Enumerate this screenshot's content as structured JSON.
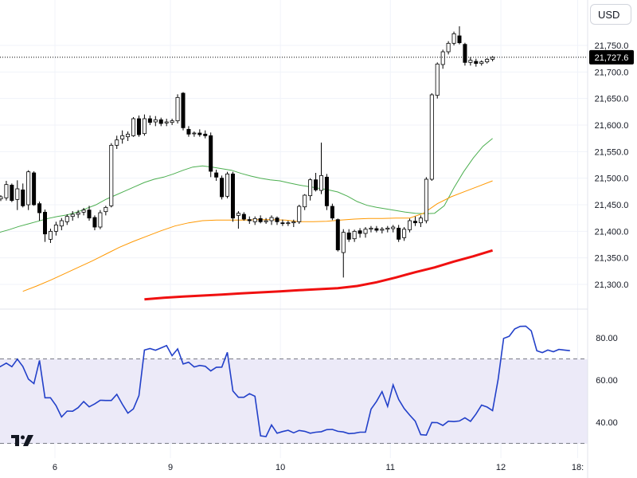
{
  "currency_selector": {
    "label": "USD"
  },
  "logo": {
    "name": "tradingview-logo",
    "text": "TV"
  },
  "chart_data": [
    {
      "type": "candlestick",
      "title": "",
      "ylim": [
        21270,
        21790
      ],
      "y_ticks": [
        "21,300.0",
        "21,350.0",
        "21,400.0",
        "21,450.0",
        "21,500.0",
        "21,550.0",
        "21,600.0",
        "21,650.0",
        "21,700.0",
        "21,750.0"
      ],
      "y_tick_values": [
        21300,
        21350,
        21400,
        21450,
        21500,
        21550,
        21600,
        21650,
        21700,
        21750
      ],
      "x_ticks": [
        "6",
        "9",
        "10",
        "11",
        "12",
        "18:"
      ],
      "x_tick_index": [
        11.8,
        32.7,
        52.6,
        72.5,
        92.5,
        106.4
      ],
      "last_price": {
        "value": 21727.6,
        "label": "21,727.6"
      },
      "grid": true,
      "candles": [
        [
          21452,
          21459,
          21447,
          21456
        ],
        [
          21456,
          21464,
          21452,
          21460
        ],
        [
          21461,
          21468,
          21457,
          21465
        ],
        [
          21463,
          21495,
          21458,
          21488
        ],
        [
          21487,
          21490,
          21455,
          21458
        ],
        [
          21460,
          21496,
          21440,
          21480
        ],
        [
          21478,
          21490,
          21445,
          21448
        ],
        [
          21450,
          21515,
          21440,
          21512
        ],
        [
          21510,
          21513,
          21448,
          21450
        ],
        [
          21452,
          21456,
          21420,
          21435
        ],
        [
          21436,
          21441,
          21380,
          21395
        ],
        [
          21385,
          21405,
          21378,
          21400
        ],
        [
          21400,
          21418,
          21392,
          21412
        ],
        [
          21410,
          21425,
          21402,
          21420
        ],
        [
          21418,
          21432,
          21412,
          21428
        ],
        [
          21428,
          21438,
          21420,
          21432
        ],
        [
          21432,
          21440,
          21425,
          21435
        ],
        [
          21436,
          21444,
          21430,
          21440
        ],
        [
          21440,
          21448,
          21420,
          21425
        ],
        [
          21426,
          21430,
          21402,
          21408
        ],
        [
          21408,
          21440,
          21404,
          21435
        ],
        [
          21437,
          21448,
          21430,
          21445
        ],
        [
          21448,
          21566,
          21445,
          21562
        ],
        [
          21562,
          21580,
          21555,
          21572
        ],
        [
          21574,
          21590,
          21565,
          21580
        ],
        [
          21578,
          21588,
          21570,
          21583
        ],
        [
          21580,
          21615,
          21578,
          21612
        ],
        [
          21612,
          21618,
          21578,
          21582
        ],
        [
          21584,
          21620,
          21580,
          21612
        ],
        [
          21612,
          21618,
          21600,
          21605
        ],
        [
          21606,
          21617,
          21598,
          21610
        ],
        [
          21610,
          21614,
          21598,
          21603
        ],
        [
          21604,
          21612,
          21598,
          21606
        ],
        [
          21605,
          21612,
          21600,
          21608
        ],
        [
          21608,
          21658,
          21603,
          21652
        ],
        [
          21660,
          21662,
          21590,
          21595
        ],
        [
          21592,
          21598,
          21578,
          21583
        ],
        [
          21584,
          21588,
          21578,
          21585
        ],
        [
          21585,
          21592,
          21578,
          21582
        ],
        [
          21583,
          21590,
          21575,
          21580
        ],
        [
          21580,
          21586,
          21502,
          21513
        ],
        [
          21510,
          21516,
          21495,
          21502
        ],
        [
          21500,
          21505,
          21460,
          21465
        ],
        [
          21466,
          21512,
          21462,
          21508
        ],
        [
          21508,
          21512,
          21418,
          21425
        ],
        [
          21430,
          21438,
          21405,
          21434
        ],
        [
          21432,
          21436,
          21420,
          21423
        ],
        [
          21422,
          21428,
          21414,
          21420
        ],
        [
          21418,
          21428,
          21412,
          21424
        ],
        [
          21424,
          21430,
          21415,
          21418
        ],
        [
          21418,
          21425,
          21414,
          21420
        ],
        [
          21420,
          21430,
          21412,
          21426
        ],
        [
          21425,
          21428,
          21412,
          21418
        ],
        [
          21416,
          21422,
          21410,
          21415
        ],
        [
          21415,
          21420,
          21410,
          21416
        ],
        [
          21416,
          21422,
          21408,
          21418
        ],
        [
          21418,
          21450,
          21414,
          21447
        ],
        [
          21446,
          21470,
          21440,
          21468
        ],
        [
          21467,
          21500,
          21458,
          21497
        ],
        [
          21497,
          21510,
          21475,
          21478
        ],
        [
          21477,
          21567,
          21470,
          21505
        ],
        [
          21502,
          21508,
          21440,
          21448
        ],
        [
          21447,
          21452,
          21421,
          21425
        ],
        [
          21422,
          21424,
          21362,
          21365
        ],
        [
          21360,
          21404,
          21313,
          21398
        ],
        [
          21397,
          21404,
          21380,
          21385
        ],
        [
          21386,
          21403,
          21380,
          21400
        ],
        [
          21401,
          21406,
          21388,
          21396
        ],
        [
          21396,
          21408,
          21388,
          21404
        ],
        [
          21404,
          21410,
          21398,
          21406
        ],
        [
          21405,
          21410,
          21398,
          21402
        ],
        [
          21402,
          21408,
          21396,
          21404
        ],
        [
          21404,
          21410,
          21398,
          21406
        ],
        [
          21405,
          21412,
          21398,
          21408
        ],
        [
          21406,
          21412,
          21380,
          21385
        ],
        [
          21388,
          21408,
          21382,
          21404
        ],
        [
          21403,
          21424,
          21398,
          21420
        ],
        [
          21419,
          21428,
          21410,
          21416
        ],
        [
          21416,
          21430,
          21408,
          21425
        ],
        [
          21420,
          21502,
          21415,
          21498
        ],
        [
          21498,
          21660,
          21495,
          21657
        ],
        [
          21656,
          21718,
          21650,
          21715
        ],
        [
          21714,
          21742,
          21706,
          21738
        ],
        [
          21738,
          21758,
          21733,
          21754
        ],
        [
          21754,
          21776,
          21750,
          21772
        ],
        [
          21768,
          21786,
          21752,
          21755
        ],
        [
          21752,
          21755,
          21712,
          21718
        ],
        [
          21718,
          21728,
          21712,
          21722
        ],
        [
          21720,
          21725,
          21710,
          21716
        ],
        [
          21716,
          21722,
          21712,
          21719
        ],
        [
          21719,
          21726,
          21716,
          21724
        ],
        [
          21724,
          21730,
          21720,
          21727.6
        ]
      ],
      "series": [
        {
          "values": [
            21328,
            21343,
            21356,
            21368,
            21377,
            21383,
            21387,
            21390,
            21393,
            21398,
            21403,
            21409,
            21414,
            21419,
            21424,
            21428,
            21431,
            21436,
            21443,
            21450,
            21460,
            21468,
            21476,
            21484,
            21492,
            21498,
            21502,
            21508,
            21515,
            21521,
            21523,
            21521,
            21518,
            21515,
            21509,
            21504,
            21500,
            21497,
            21495,
            21491,
            21487,
            21484,
            21481,
            21478,
            21474,
            21466,
            21456,
            21449,
            21445,
            21442,
            21439,
            21436,
            21434,
            21433,
            21434,
            21448,
            21482,
            21512,
            21538,
            21560,
            21575
          ]
        },
        {
          "values": [
            21287,
            21297,
            21308,
            21320,
            21332,
            21344,
            21357,
            21370,
            21381,
            21391,
            21401,
            21410,
            21416,
            21420,
            21421,
            21421,
            21421,
            21422,
            21422,
            21421,
            21418,
            21418,
            21419,
            21421,
            21423,
            21424,
            21424,
            21425,
            21425,
            21434,
            21452,
            21465,
            21475,
            21485,
            21495
          ]
        },
        {
          "values": [
            21272,
            21275,
            21277,
            21279,
            21281,
            21283,
            21285,
            21287,
            21289,
            21291,
            21293,
            21297,
            21304,
            21313,
            21323,
            21332,
            21343,
            21353,
            21364
          ]
        }
      ]
    },
    {
      "type": "line",
      "title": "",
      "ylim": [
        27,
        90
      ],
      "y_ticks": [
        "40.00",
        "60.00",
        "80.00"
      ],
      "y_tick_values": [
        40,
        60,
        80
      ],
      "reference_lines": [
        70,
        30
      ],
      "band": [
        30,
        70
      ],
      "series": [
        {
          "values": [
            66.7,
            65.4,
            66.5,
            68.0,
            66.3,
            69.9,
            66.4,
            60.4,
            58.3,
            69.3,
            51.6,
            51.6,
            47.9,
            42.5,
            45.3,
            45.2,
            46.9,
            49.8,
            47.3,
            48.7,
            50.4,
            50.3,
            50.3,
            53.2,
            48.5,
            44.3,
            46.3,
            52.6,
            74.2,
            74.9,
            74.1,
            75.2,
            76.3,
            71.5,
            74.7,
            67.6,
            68.4,
            66.2,
            66.9,
            66.5,
            64.3,
            66.0,
            66.1,
            73.1,
            54.8,
            51.8,
            51.8,
            53.5,
            52.3,
            33.6,
            33.2,
            38.7,
            34.8,
            35.6,
            36.2,
            35.0,
            36.1,
            35.7,
            34.8,
            35.3,
            35.5,
            36.5,
            36.6,
            35.7,
            35.4,
            34.6,
            34.8,
            35.3,
            35.3,
            46.2,
            49.9,
            54.5,
            47.5,
            57.7,
            50.8,
            46.5,
            43.4,
            40.5,
            34.1,
            33.9,
            39.9,
            39.8,
            38.5,
            40.5,
            40.3,
            40.6,
            42.1,
            40.4,
            43.9,
            48.1,
            47.2,
            45.5,
            60.3,
            79.7,
            80.7,
            84.2,
            85.4,
            85.5,
            83.3,
            73.9,
            73.0,
            74.2,
            73.4,
            74.5,
            74.2,
            73.9
          ]
        }
      ]
    }
  ],
  "colors": {
    "candle_up_fill": "#ffffff",
    "candle_down_fill": "#000000",
    "candle_outline": "#000000",
    "ma_fast": "#4caf50",
    "ma_mid": "#ff9800",
    "ma_slow": "#f01010",
    "rsi_line": "#2240c9",
    "rsi_band": "#eceaf8",
    "last_price_bg": "#000000",
    "last_price_text": "#ffffff",
    "axis_text": "#131722",
    "grid": "#f0f3fa"
  }
}
